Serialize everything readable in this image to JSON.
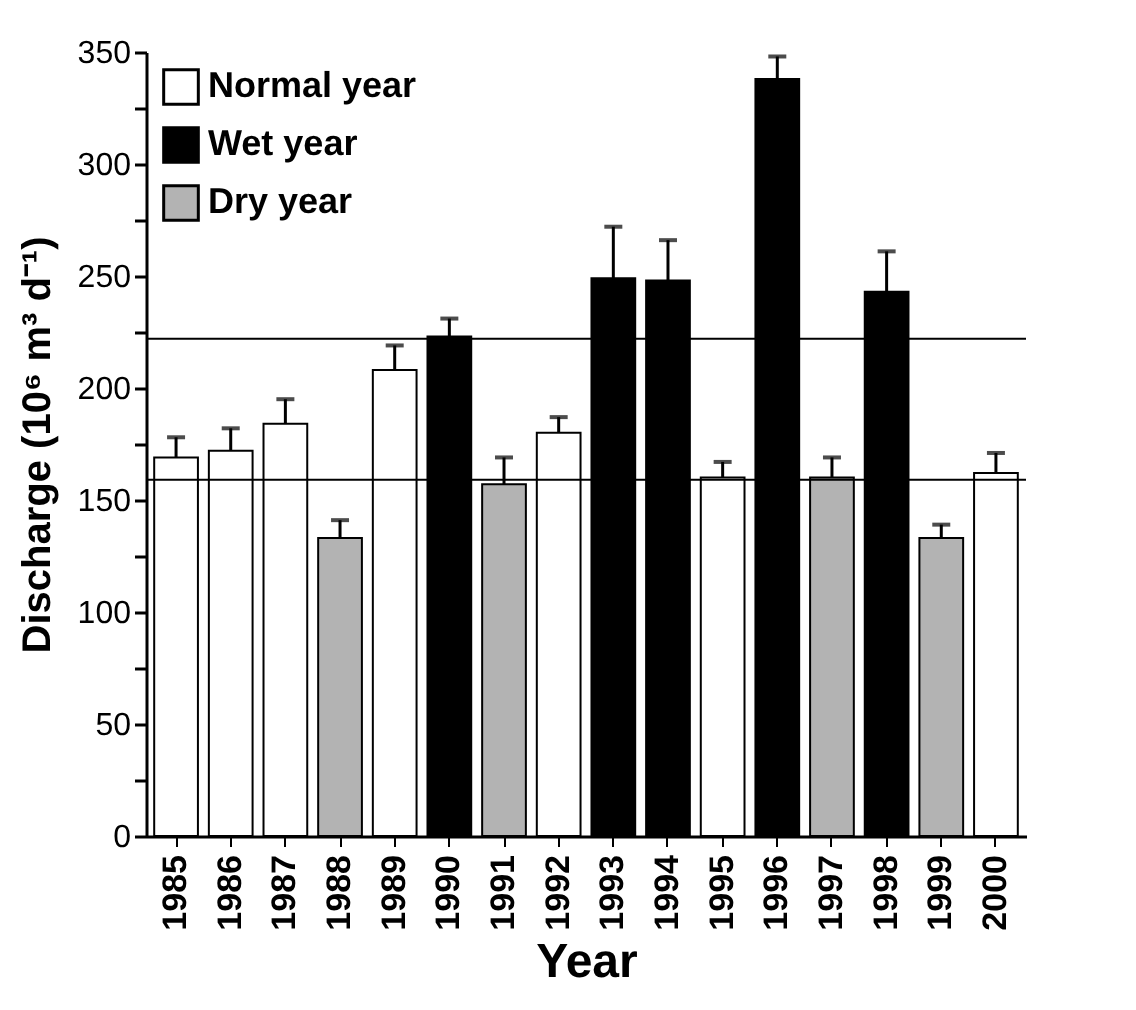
{
  "chart_data": {
    "type": "bar",
    "xlabel": "Year",
    "ylabel": "Discharge (10⁶ m³ d⁻¹)",
    "categories": [
      "1985",
      "1986",
      "1987",
      "1988",
      "1989",
      "1990",
      "1991",
      "1992",
      "1993",
      "1994",
      "1995",
      "1996",
      "1997",
      "1998",
      "1999",
      "2000"
    ],
    "series": [
      {
        "name": "Normal year",
        "color": "#ffffff",
        "values": [
          169,
          172,
          184,
          null,
          208,
          null,
          null,
          180,
          null,
          null,
          160,
          null,
          null,
          null,
          null,
          162
        ],
        "errors": [
          9,
          10,
          11,
          null,
          11,
          null,
          null,
          7,
          null,
          null,
          7,
          null,
          null,
          null,
          null,
          9
        ]
      },
      {
        "name": "Wet year",
        "color": "#000000",
        "values": [
          null,
          null,
          null,
          null,
          null,
          223,
          null,
          null,
          249,
          248,
          null,
          338,
          null,
          243,
          null,
          null
        ],
        "errors": [
          null,
          null,
          null,
          null,
          null,
          8,
          null,
          null,
          23,
          18,
          null,
          10,
          null,
          18,
          null,
          null
        ]
      },
      {
        "name": "Dry year",
        "color": "#b3b3b3",
        "values": [
          null,
          null,
          null,
          133,
          null,
          null,
          157,
          null,
          null,
          null,
          null,
          null,
          160,
          null,
          133,
          null
        ],
        "errors": [
          null,
          null,
          null,
          8,
          null,
          null,
          12,
          null,
          null,
          null,
          null,
          null,
          9,
          null,
          6,
          null
        ]
      }
    ],
    "ylim": [
      0,
      350
    ],
    "yticks": [
      0,
      {
        "value": 25,
        "label": null
      },
      50,
      {
        "value": 75,
        "label": null
      },
      100,
      {
        "value": 125,
        "label": null
      },
      150,
      {
        "value": 175,
        "label": null
      },
      200,
      {
        "value": 225,
        "label": null
      },
      250,
      {
        "value": 275,
        "label": null
      },
      300,
      {
        "value": 325,
        "label": null
      },
      350
    ],
    "ref_lines": [
      {
        "axis": "y",
        "value": 159
      },
      {
        "axis": "y",
        "value": 222
      }
    ],
    "legend": "top left",
    "grid": false
  }
}
